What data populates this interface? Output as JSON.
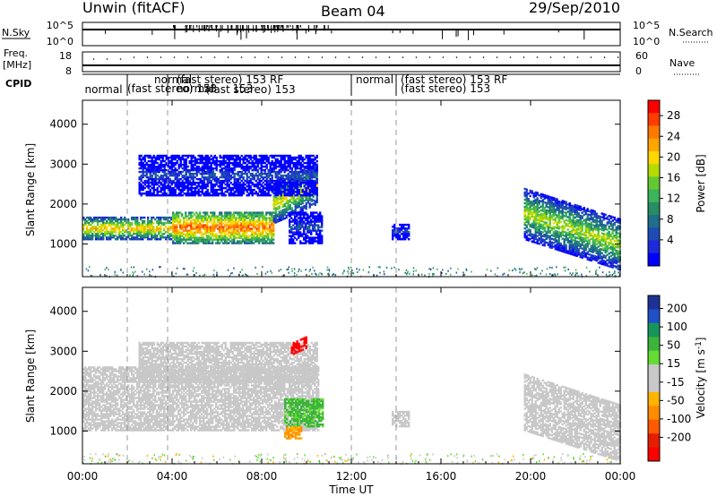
{
  "header": {
    "station": "Unwin (fitACF)",
    "beam": "Beam 04",
    "date": "29/Sep/2010"
  },
  "noise_panel": {
    "left_label": "N.Sky",
    "left_ticks": [
      "10^5",
      "10^0"
    ],
    "right_ticks": [
      "10^5",
      "10^0"
    ],
    "right_label": "N.Search"
  },
  "freq_panel": {
    "left_label_1": "Freq.",
    "left_label_2": "[MHz]",
    "left_ticks": [
      "18",
      "8"
    ],
    "right_ticks": [
      "60",
      "0"
    ],
    "right_label": "Nave"
  },
  "cpid_panel": {
    "label": "CPID",
    "upper_labels": [
      {
        "text": "normal",
        "t": 3.2
      },
      {
        "text": "(fast stereo)  153 RF",
        "t": 4.2
      },
      {
        "text": "normal",
        "t": 12.2
      },
      {
        "text": "(fast stereo)  153 RF",
        "t": 14.2
      }
    ],
    "middle_labels": [
      {
        "text": "(fast stereo)  153",
        "t": 2.0
      },
      {
        "text": "(fast stereo)  153",
        "t": 14.2
      }
    ],
    "overlap_labels": [
      {
        "text": "normal",
        "t": 4.2
      },
      {
        "text": "153",
        "t": 6.7
      }
    ],
    "lower_labels": [
      {
        "text": "normal",
        "t": 0.1
      },
      {
        "text": "(fast stereo)  153",
        "t": 5.5
      }
    ],
    "boundaries_ut": [
      2.0,
      3.8,
      12.0,
      14.0
    ]
  },
  "power_colorbar": {
    "label": "Power [dB]",
    "ticks": [
      "28",
      "24",
      "20",
      "16",
      "12",
      "8",
      "4"
    ],
    "colors": [
      "#ff0000",
      "#ff3c00",
      "#ff7800",
      "#ffa500",
      "#ffd700",
      "#b4dc00",
      "#64c832",
      "#3cb45a",
      "#288c64",
      "#1e6e8c",
      "#1e4bb4",
      "#1e28dc",
      "#0000ff"
    ]
  },
  "velocity_colorbar": {
    "label": "Velocity [m s",
    "label_sup": "-1",
    "label_end": "]",
    "ticks": [
      "200",
      "100",
      "50",
      "15",
      "-15",
      "-50",
      "-100",
      "-200"
    ],
    "colors": [
      "#1e3296",
      "#1e50c8",
      "#14965a",
      "#3cb43c",
      "#64dc32",
      "#c8c8c8",
      "#c8c8c8",
      "#ffb400",
      "#ff8c00",
      "#ff5a00",
      "#e61e00",
      "#ff0000"
    ]
  },
  "chart_data": [
    {
      "type": "heatmap",
      "title": "Power",
      "xlabel": "Time UT",
      "ylabel": "Slant Range [km]",
      "x_ticks": [
        "00:00",
        "04:00",
        "08:00",
        "12:00",
        "16:00",
        "20:00",
        "00:00"
      ],
      "y_ticks": [
        "1000",
        "2000",
        "3000",
        "4000"
      ],
      "xlim": [
        0,
        24
      ],
      "ylim": [
        180,
        4600
      ],
      "bands": [
        {
          "t0": 0.0,
          "t1": 4.0,
          "r_lo": 1100,
          "r_hi": 1650,
          "p": 22
        },
        {
          "t0": 4.0,
          "t1": 8.5,
          "r_lo": 1000,
          "r_hi": 1800,
          "p": 26
        },
        {
          "t0": 8.5,
          "t1": 10.5,
          "r_lo": 1500,
          "r_hi": 2500,
          "p": 20
        },
        {
          "t0": 2.5,
          "t1": 10.5,
          "r_lo": 2200,
          "r_hi": 3200,
          "p": 6
        },
        {
          "t0": 9.2,
          "t1": 10.7,
          "r_lo": 1000,
          "r_hi": 1800,
          "p": 6
        },
        {
          "t0": 13.8,
          "t1": 14.6,
          "r_lo": 1100,
          "r_hi": 1500,
          "p": 6
        },
        {
          "t0": 19.7,
          "t1": 24.0,
          "r_lo": 1100,
          "r_hi": 2400,
          "p": 18
        }
      ]
    },
    {
      "type": "heatmap",
      "title": "Velocity",
      "xlabel": "Time UT",
      "ylabel": "Slant Range [km]",
      "x_ticks": [
        "00:00",
        "04:00",
        "08:00",
        "12:00",
        "16:00",
        "20:00",
        "00:00"
      ],
      "y_ticks": [
        "1000",
        "2000",
        "3000",
        "4000"
      ],
      "xlim": [
        0,
        24
      ],
      "ylim": [
        180,
        4600
      ],
      "bands": [
        {
          "t0": 0.0,
          "t1": 10.5,
          "r_lo": 1000,
          "r_hi": 2600,
          "v": 0
        },
        {
          "t0": 2.5,
          "t1": 10.5,
          "r_lo": 2200,
          "r_hi": 3200,
          "v": 0
        },
        {
          "t0": 9.0,
          "t1": 10.7,
          "r_lo": 1100,
          "r_hi": 1800,
          "v": 40
        },
        {
          "t0": 9.0,
          "t1": 9.8,
          "r_lo": 800,
          "r_hi": 1100,
          "v": -50
        },
        {
          "t0": 9.3,
          "t1": 10.0,
          "r_lo": 2900,
          "r_hi": 3200,
          "v": -200
        },
        {
          "t0": 13.8,
          "t1": 14.6,
          "r_lo": 1100,
          "r_hi": 1500,
          "v": 0
        },
        {
          "t0": 19.7,
          "t1": 24.0,
          "r_lo": 1000,
          "r_hi": 2400,
          "v": 0
        }
      ]
    }
  ]
}
